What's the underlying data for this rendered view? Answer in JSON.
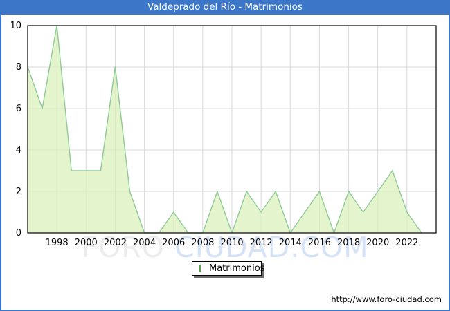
{
  "title_bar": {
    "title": "Valdeprado del Río - Matrimonios"
  },
  "legend": {
    "label": "Matrimonios"
  },
  "watermark": {
    "part1": "FORO",
    "part2": "CIUDAD.COM"
  },
  "footer": {
    "url": "http://www.foro-ciudad.com"
  },
  "colors": {
    "titlebar_bg": "#3b76c9",
    "titlebar_text": "#ffffff",
    "border": "#3b76c9",
    "area_fill": "#d9f0b8",
    "area_stroke": "#8fca96",
    "grid": "#d9d9d9",
    "axis": "#000000",
    "legend_swatch_fill": "#b9ef9b",
    "legend_swatch_border": "#55a04b",
    "watermark_gray": "#ececec",
    "watermark_blue": "#d5e2f6"
  },
  "chart_data": {
    "type": "area",
    "title": "Valdeprado del Río - Matrimonios",
    "series_name": "Matrimonios",
    "x": [
      1996,
      1997,
      1998,
      1999,
      2000,
      2001,
      2002,
      2003,
      2004,
      2005,
      2006,
      2007,
      2008,
      2009,
      2010,
      2011,
      2012,
      2013,
      2014,
      2015,
      2016,
      2017,
      2018,
      2019,
      2020,
      2021,
      2022,
      2023
    ],
    "values": [
      8,
      6,
      10,
      3,
      3,
      3,
      8,
      2,
      0,
      0,
      1,
      0,
      0,
      2,
      0,
      2,
      1,
      2,
      0,
      1,
      2,
      0,
      2,
      1,
      2,
      3,
      1,
      0
    ],
    "xlabel": "",
    "ylabel": "",
    "xlim": [
      1996,
      2024
    ],
    "ylim": [
      0,
      10
    ],
    "xticks": [
      1998,
      2000,
      2002,
      2004,
      2006,
      2008,
      2010,
      2012,
      2014,
      2016,
      2018,
      2020,
      2022
    ],
    "yticks": [
      0,
      2,
      4,
      6,
      8,
      10
    ],
    "grid": true,
    "legend_position": "bottom-center"
  }
}
